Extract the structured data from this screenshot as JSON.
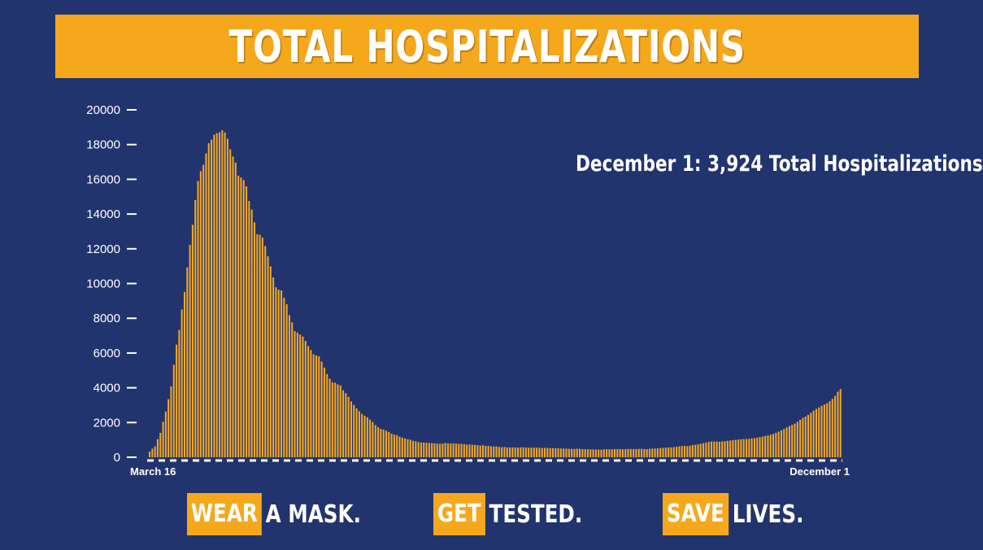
{
  "header": {
    "title": "TOTAL HOSPITALIZATIONS"
  },
  "annotation": "December 1: 3,924 Total Hospitalizations",
  "slogans": [
    {
      "highlight": "WEAR",
      "rest": "A MASK."
    },
    {
      "highlight": "GET",
      "rest": "TESTED."
    },
    {
      "highlight": "SAVE",
      "rest": "LIVES."
    }
  ],
  "colors": {
    "background": "#22346e",
    "accent": "#f5a81c",
    "text": "#ffffff"
  },
  "chart_data": {
    "type": "bar",
    "title": "TOTAL HOSPITALIZATIONS",
    "xlabel": "",
    "ylabel": "",
    "x_start_label": "March 16",
    "x_end_label": "December 1",
    "ylim": [
      0,
      20000
    ],
    "yticks": [
      "0",
      "2000",
      "4000",
      "6000",
      "8000",
      "10000",
      "12000",
      "14000",
      "16000",
      "18000",
      "20000"
    ],
    "grid": false,
    "legend": "none",
    "values": [
      326,
      495,
      617,
      1042,
      1406,
      2043,
      2635,
      3343,
      4079,
      5327,
      6481,
      7328,
      8503,
      9517,
      10929,
      12226,
      13383,
      14810,
      15905,
      16479,
      16837,
      17493,
      18079,
      18279,
      18569,
      18654,
      18707,
      18825,
      18697,
      18335,
      17735,
      17316,
      16967,
      16213,
      16103,
      15964,
      15599,
      14753,
      14258,
      13524,
      12839,
      12819,
      12646,
      12159,
      11571,
      10993,
      10350,
      9785,
      9647,
      9600,
      9179,
      8811,
      8185,
      7762,
      7262,
      7177,
      7064,
      6946,
      6698,
      6394,
      6173,
      5924,
      5860,
      5810,
      5504,
      5164,
      4791,
      4521,
      4322,
      4290,
      4198,
      4130,
      3852,
      3682,
      3473,
      3214,
      3011,
      2809,
      2647,
      2495,
      2386,
      2304,
      2164,
      2025,
      1847,
      1733,
      1638,
      1593,
      1525,
      1462,
      1358,
      1302,
      1272,
      1188,
      1128,
      1077,
      1038,
      1010,
      946,
      918,
      873,
      844,
      851,
      833,
      817,
      817,
      801,
      785,
      779,
      782,
      816,
      794,
      800,
      801,
      789,
      773,
      772,
      756,
      728,
      731,
      719,
      716,
      697,
      669,
      687,
      659,
      651,
      631,
      613,
      625,
      595,
      579,
      588,
      569,
      561,
      567,
      561,
      558,
      566,
      571,
      564,
      547,
      555,
      549,
      552,
      548,
      533,
      541,
      532,
      526,
      521,
      531,
      519,
      501,
      502,
      495,
      488,
      485,
      480,
      492,
      487,
      469,
      466,
      461,
      455,
      452,
      447,
      442,
      436,
      459,
      462,
      458,
      461,
      469,
      472,
      468,
      457,
      466,
      479,
      478,
      475,
      471,
      480,
      484,
      476,
      470,
      486,
      503,
      502,
      514,
      526,
      540,
      553,
      562,
      570,
      582,
      601,
      625,
      646,
      653,
      640,
      668,
      704,
      719,
      747,
      780,
      812,
      847,
      883,
      904,
      907,
      903,
      892,
      915,
      922,
      947,
      961,
      987,
      1001,
      1020,
      1035,
      1047,
      1051,
      1061,
      1082,
      1100,
      1127,
      1155,
      1185,
      1227,
      1253,
      1300,
      1346,
      1401,
      1473,
      1548,
      1628,
      1715,
      1797,
      1868,
      1940,
      2043,
      2162,
      2267,
      2348,
      2440,
      2560,
      2687,
      2782,
      2864,
      2958,
      3041,
      3108,
      3222,
      3366,
      3532,
      3774,
      3924
    ]
  }
}
